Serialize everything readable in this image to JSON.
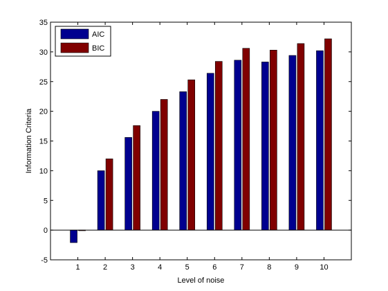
{
  "chart_data": {
    "type": "bar",
    "title": "",
    "xlabel": "Level of noise",
    "ylabel": "Information Criteria",
    "categories": [
      "1",
      "2",
      "3",
      "4",
      "5",
      "6",
      "7",
      "8",
      "9",
      "10"
    ],
    "ylim": [
      -5,
      35
    ],
    "yticks": [
      -5,
      0,
      5,
      10,
      15,
      20,
      25,
      30,
      35
    ],
    "grid": false,
    "legend_position": "top-left",
    "series": [
      {
        "name": "AIC",
        "color": "#00008f",
        "values": [
          -2.1,
          10.0,
          15.6,
          20.0,
          23.3,
          26.4,
          28.6,
          28.3,
          29.4,
          30.2
        ]
      },
      {
        "name": "BIC",
        "color": "#800000",
        "values": [
          -0.1,
          12.0,
          17.6,
          22.0,
          25.3,
          28.4,
          30.6,
          30.3,
          31.4,
          32.2
        ]
      }
    ]
  }
}
